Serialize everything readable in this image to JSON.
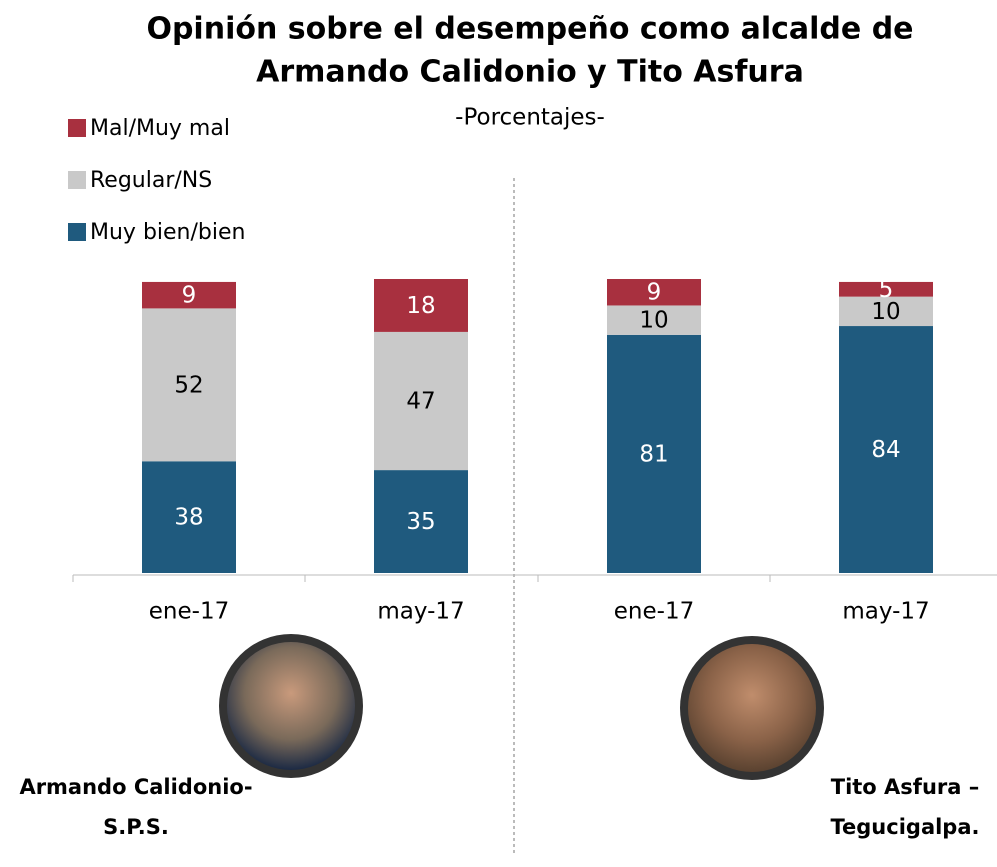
{
  "chart_data": {
    "type": "stacked_bar",
    "title": [
      "Opinión sobre el desempeño como alcalde de",
      "Armando Calidonio y Tito Asfura"
    ],
    "subtitle": "-Porcentajes-",
    "categories": [
      "ene-17",
      "may-17",
      "ene-17",
      "may-17"
    ],
    "series": [
      {
        "name": "Muy bien/bien",
        "color": "#1f5a7e",
        "values": [
          38,
          35,
          81,
          84
        ]
      },
      {
        "name": "Regular/NS",
        "color": "#c9c9c9",
        "values": [
          52,
          47,
          10,
          10
        ]
      },
      {
        "name": "Mal/Muy mal",
        "color": "#a8303f",
        "values": [
          9,
          18,
          9,
          5
        ]
      }
    ],
    "ylim": [
      0,
      100
    ],
    "captions": [
      [
        "Armando Calidonio-",
        "S.P.S."
      ],
      [
        "Tito Asfura –",
        "Tegucigalpa."
      ]
    ]
  }
}
